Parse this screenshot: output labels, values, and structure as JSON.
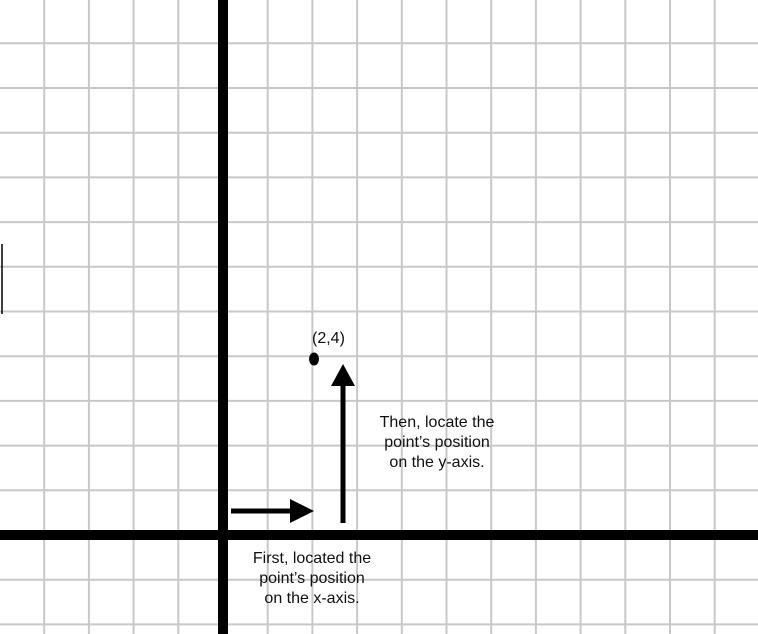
{
  "point": {
    "label": "(2,4)",
    "x": 2,
    "y": 4
  },
  "notes": {
    "y_axis": [
      "Then, locate the",
      "point’s position",
      "on the y-axis."
    ],
    "x_axis": [
      "First, located the",
      "point’s position",
      "on the x-axis."
    ]
  },
  "colors": {
    "grid": "#c8c8c8",
    "axis": "#000000",
    "arrow": "#000000",
    "background": "#ffffff"
  }
}
